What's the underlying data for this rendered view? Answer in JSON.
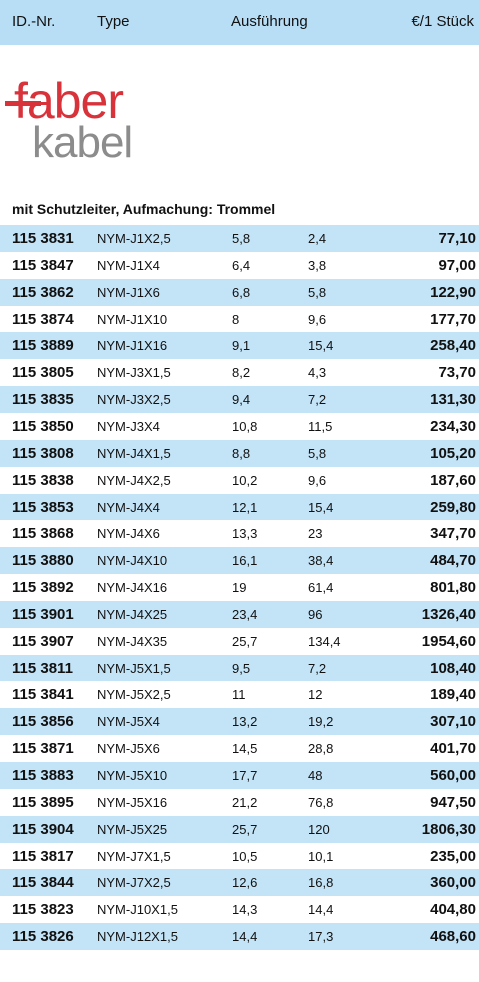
{
  "header": {
    "columns": [
      "ID.-Nr.",
      "Type",
      "Ausführung",
      "€/1 Stück"
    ]
  },
  "logo": {
    "top": "faber",
    "bottom": "kabel"
  },
  "section": "mit Schutzleiter, Aufmachung: Trommel",
  "table": {
    "rows": [
      [
        "115 3831",
        "NYM-J1X2,5",
        "5,8",
        "2,4",
        "77,10"
      ],
      [
        "115 3847",
        "NYM-J1X4",
        "6,4",
        "3,8",
        "97,00"
      ],
      [
        "115 3862",
        "NYM-J1X6",
        "6,8",
        "5,8",
        "122,90"
      ],
      [
        "115 3874",
        "NYM-J1X10",
        "8",
        "9,6",
        "177,70"
      ],
      [
        "115 3889",
        "NYM-J1X16",
        "9,1",
        "15,4",
        "258,40"
      ],
      [
        "115 3805",
        "NYM-J3X1,5",
        "8,2",
        "4,3",
        "73,70"
      ],
      [
        "115 3835",
        "NYM-J3X2,5",
        "9,4",
        "7,2",
        "131,30"
      ],
      [
        "115 3850",
        "NYM-J3X4",
        "10,8",
        "11,5",
        "234,30"
      ],
      [
        "115 3808",
        "NYM-J4X1,5",
        "8,8",
        "5,8",
        "105,20"
      ],
      [
        "115 3838",
        "NYM-J4X2,5",
        "10,2",
        "9,6",
        "187,60"
      ],
      [
        "115 3853",
        "NYM-J4X4",
        "12,1",
        "15,4",
        "259,80"
      ],
      [
        "115 3868",
        "NYM-J4X6",
        "13,3",
        "23",
        "347,70"
      ],
      [
        "115 3880",
        "NYM-J4X10",
        "16,1",
        "38,4",
        "484,70"
      ],
      [
        "115 3892",
        "NYM-J4X16",
        "19",
        "61,4",
        "801,80"
      ],
      [
        "115 3901",
        "NYM-J4X25",
        "23,4",
        "96",
        "1326,40"
      ],
      [
        "115 3907",
        "NYM-J4X35",
        "25,7",
        "134,4",
        "1954,60"
      ],
      [
        "115 3811",
        "NYM-J5X1,5",
        "9,5",
        "7,2",
        "108,40"
      ],
      [
        "115 3841",
        "NYM-J5X2,5",
        "11",
        "12",
        "189,40"
      ],
      [
        "115 3856",
        "NYM-J5X4",
        "13,2",
        "19,2",
        "307,10"
      ],
      [
        "115 3871",
        "NYM-J5X6",
        "14,5",
        "28,8",
        "401,70"
      ],
      [
        "115 3883",
        "NYM-J5X10",
        "17,7",
        "48",
        "560,00"
      ],
      [
        "115 3895",
        "NYM-J5X16",
        "21,2",
        "76,8",
        "947,50"
      ],
      [
        "115 3904",
        "NYM-J5X25",
        "25,7",
        "120",
        "1806,30"
      ],
      [
        "115 3817",
        "NYM-J7X1,5",
        "10,5",
        "10,1",
        "235,00"
      ],
      [
        "115 3844",
        "NYM-J7X2,5",
        "12,6",
        "16,8",
        "360,00"
      ],
      [
        "115 3823",
        "NYM-J10X1,5",
        "14,3",
        "14,4",
        "404,80"
      ],
      [
        "115 3826",
        "NYM-J12X1,5",
        "14,4",
        "17,3",
        "468,60"
      ]
    ]
  }
}
